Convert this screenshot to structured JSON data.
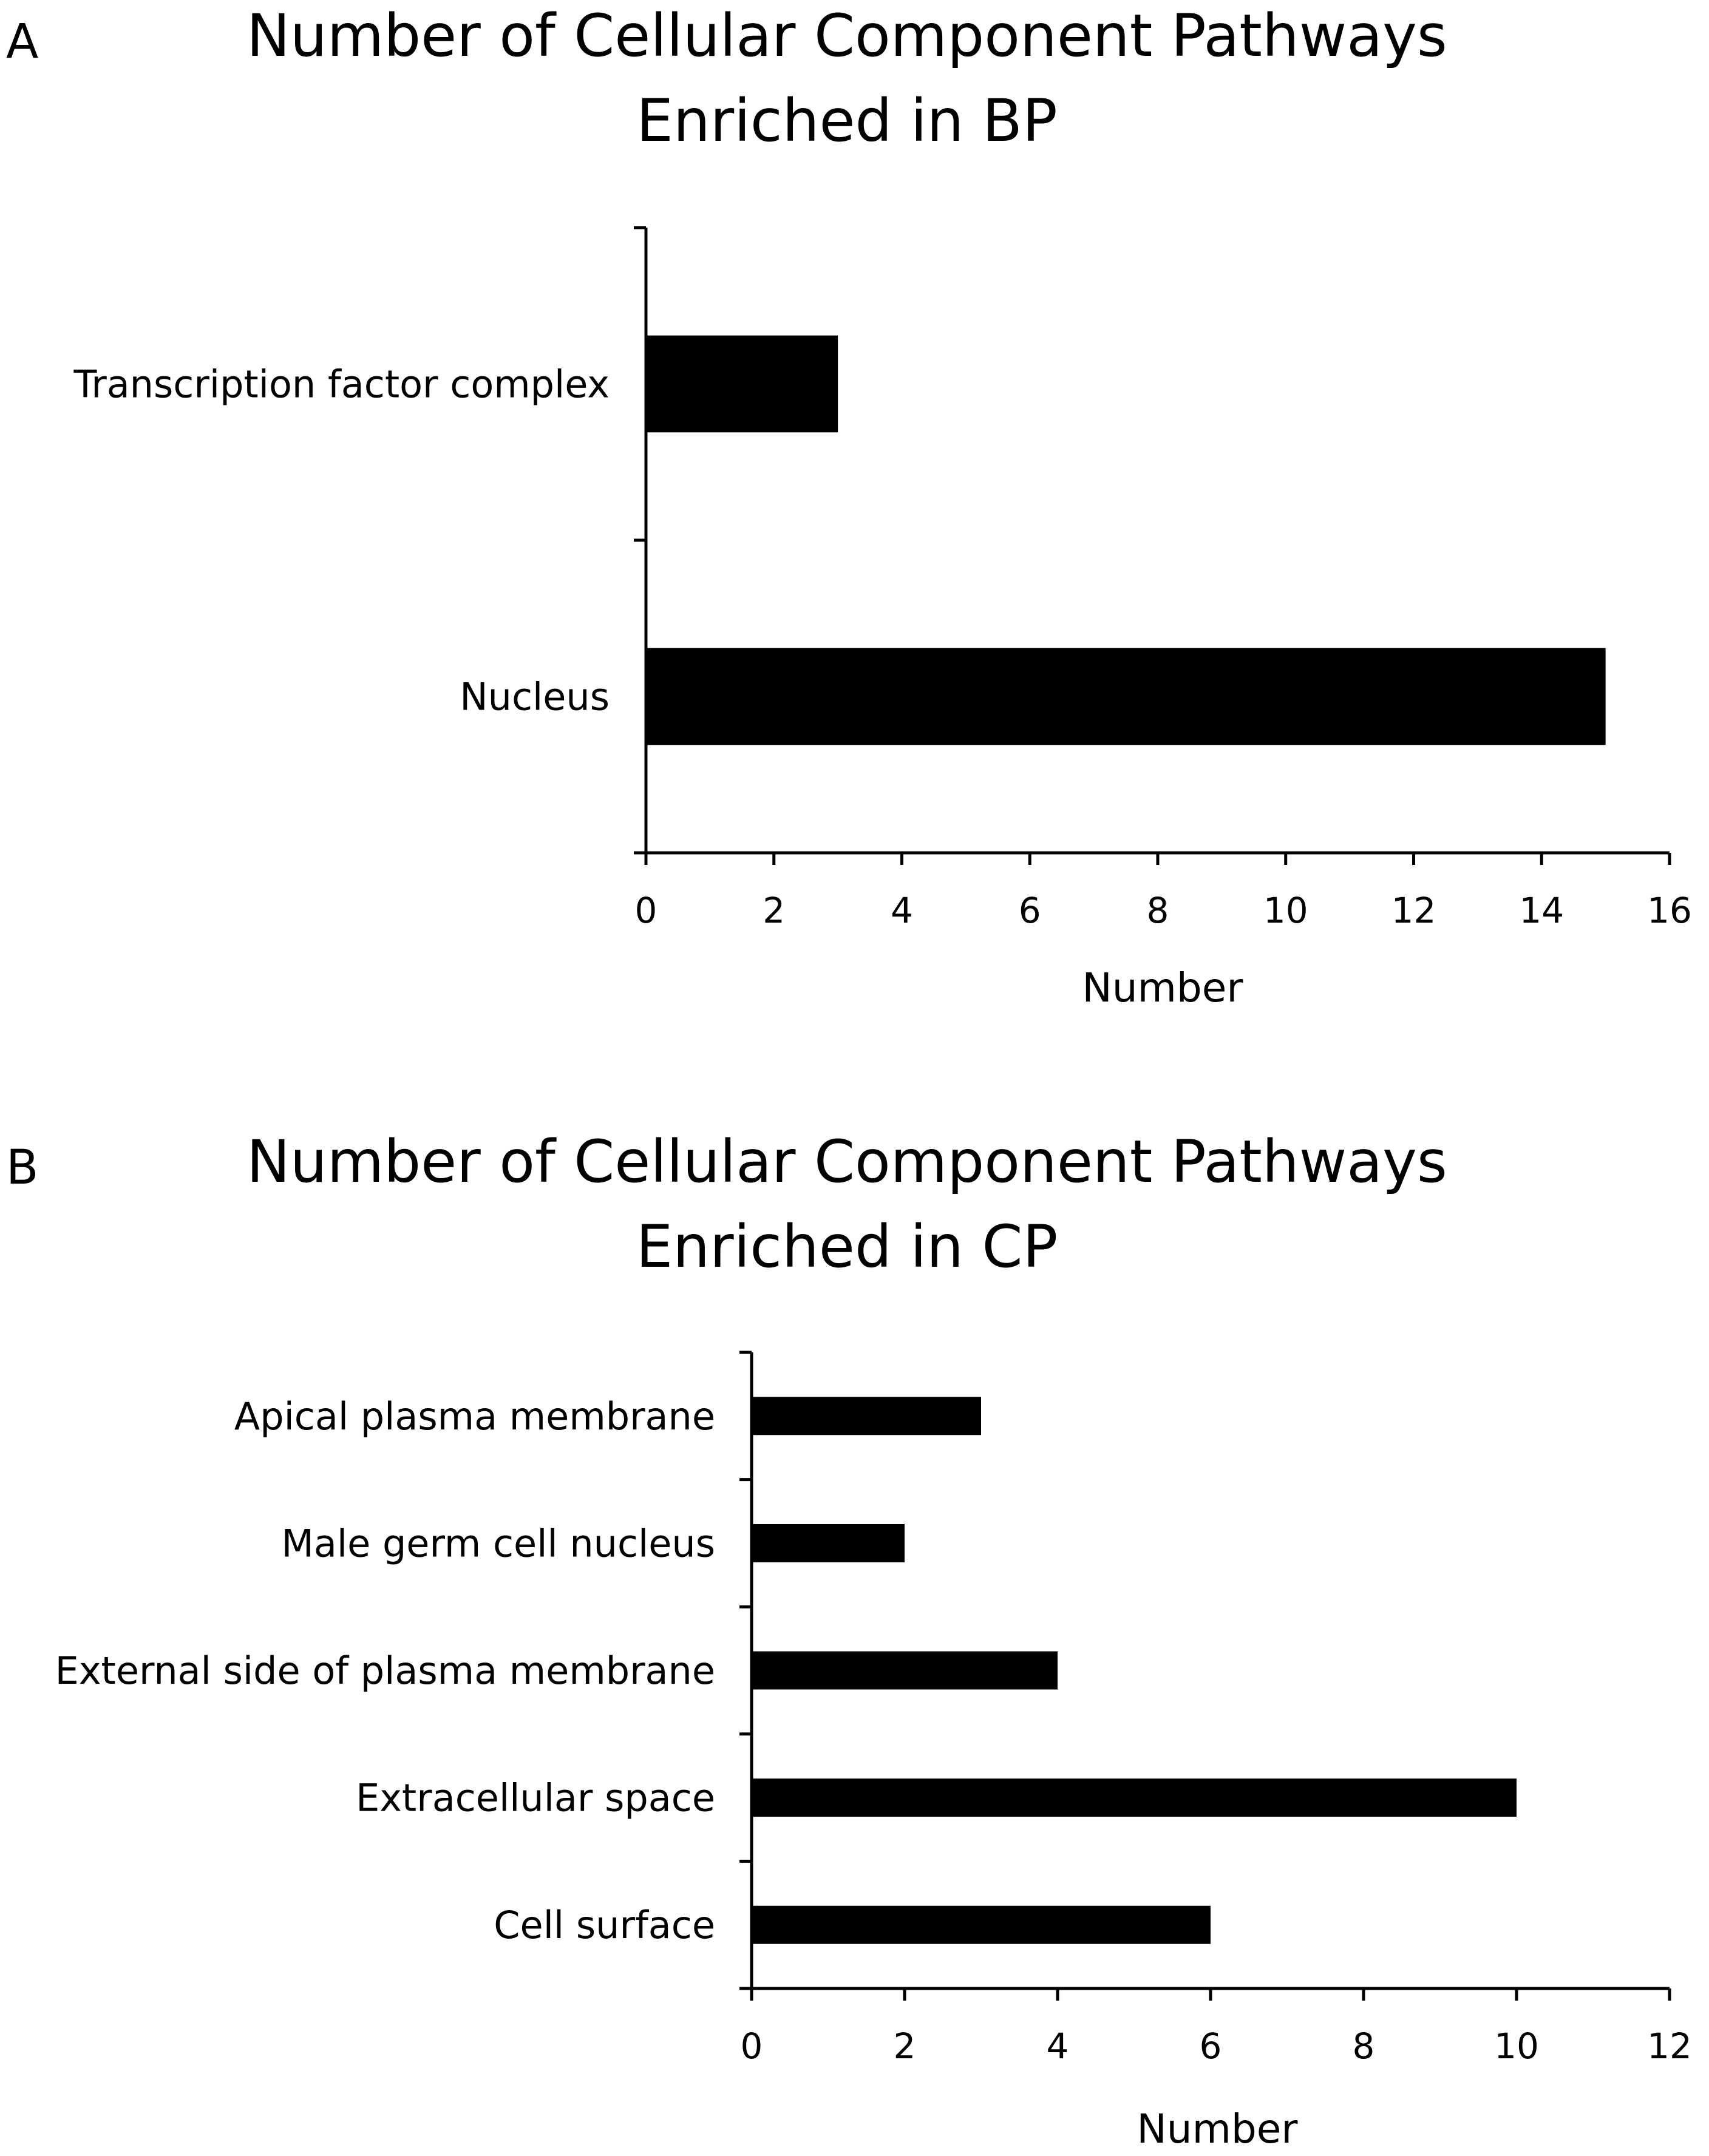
{
  "colors": {
    "bar": "#000000",
    "axis": "#000000",
    "background": "#ffffff"
  },
  "chart_data": [
    {
      "panel": "A",
      "type": "bar",
      "orientation": "horizontal",
      "title": [
        "Number of Cellular Component Pathways",
        "Enriched in BP"
      ],
      "categories": [
        "Transcription factor complex",
        "Nucleus"
      ],
      "values": [
        3,
        15
      ],
      "xlabel": "Number",
      "ylabel": "",
      "xlim": [
        0,
        16
      ],
      "xticks": [
        0,
        2,
        4,
        6,
        8,
        10,
        12,
        14,
        16
      ],
      "grid": false,
      "legend": "none"
    },
    {
      "panel": "B",
      "type": "bar",
      "orientation": "horizontal",
      "title": [
        "Number of Cellular Component Pathways",
        "Enriched in CP"
      ],
      "categories": [
        "Apical plasma membrane",
        "Male germ cell nucleus",
        "External side of plasma membrane",
        "Extracellular space",
        "Cell surface"
      ],
      "values": [
        3,
        2,
        4,
        10,
        6
      ],
      "xlabel": "Number",
      "ylabel": "",
      "xlim": [
        0,
        12
      ],
      "xticks": [
        0,
        2,
        4,
        6,
        8,
        10,
        12
      ],
      "grid": false,
      "legend": "none"
    }
  ]
}
